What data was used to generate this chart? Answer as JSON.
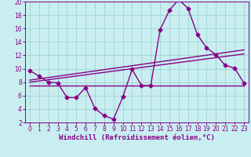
{
  "xlabel": "Windchill (Refroidissement éolien,°C)",
  "bg_color": "#c8eef0",
  "line_color": "#880088",
  "grid_color": "#99cccc",
  "xlim": [
    -0.5,
    23.5
  ],
  "ylim": [
    2,
    20
  ],
  "xticks": [
    0,
    1,
    2,
    3,
    4,
    5,
    6,
    7,
    8,
    9,
    10,
    11,
    12,
    13,
    14,
    15,
    16,
    17,
    18,
    19,
    20,
    21,
    22,
    23
  ],
  "yticks": [
    2,
    4,
    6,
    8,
    10,
    12,
    14,
    16,
    18,
    20
  ],
  "main_line": [
    [
      0,
      9.7
    ],
    [
      1,
      8.9
    ],
    [
      2,
      8.0
    ],
    [
      3,
      7.9
    ],
    [
      4,
      5.7
    ],
    [
      5,
      5.7
    ],
    [
      6,
      7.2
    ],
    [
      7,
      4.1
    ],
    [
      8,
      3.0
    ],
    [
      9,
      2.5
    ],
    [
      10,
      5.8
    ],
    [
      11,
      9.9
    ],
    [
      12,
      7.5
    ],
    [
      13,
      7.5
    ],
    [
      14,
      15.8
    ],
    [
      15,
      18.7
    ],
    [
      16,
      20.3
    ],
    [
      17,
      19.0
    ],
    [
      18,
      15.1
    ],
    [
      19,
      13.1
    ],
    [
      20,
      12.1
    ],
    [
      21,
      10.5
    ],
    [
      22,
      10.1
    ],
    [
      23,
      7.9
    ]
  ],
  "trend_line1": [
    [
      0,
      8.3
    ],
    [
      23,
      12.8
    ]
  ],
  "trend_line2": [
    [
      0,
      8.0
    ],
    [
      23,
      12.2
    ]
  ],
  "flat_line": [
    [
      0,
      7.5
    ],
    [
      23,
      7.5
    ]
  ],
  "marker_size": 2.5,
  "line_width": 1.0,
  "xlabel_fontsize": 6.5,
  "tick_fontsize": 5.5
}
